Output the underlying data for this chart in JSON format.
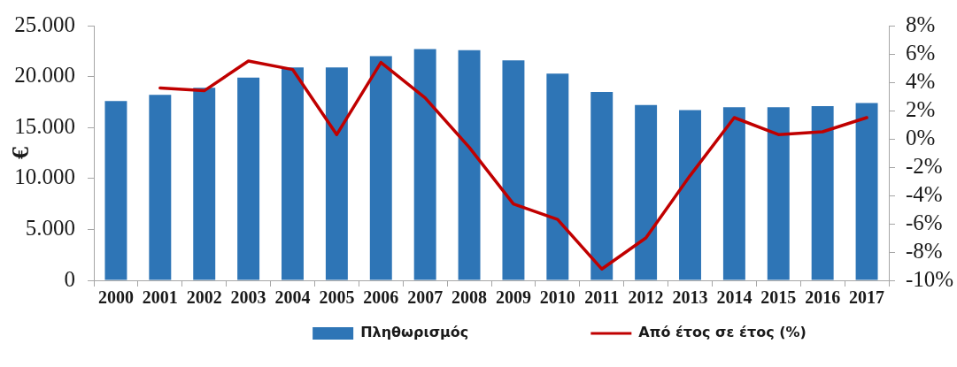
{
  "chart_data": {
    "type": "bar",
    "categories": [
      "2000",
      "2001",
      "2002",
      "2003",
      "2004",
      "2005",
      "2006",
      "2007",
      "2008",
      "2009",
      "2010",
      "2011",
      "2012",
      "2013",
      "2014",
      "2015",
      "2016",
      "2017"
    ],
    "ylabel": "€",
    "series": [
      {
        "name": "Πληθωρισμός",
        "color": "#2e75b6",
        "values": [
          17600,
          18200,
          18900,
          19900,
          20900,
          20900,
          22000,
          22700,
          22600,
          21600,
          20300,
          18500,
          17200,
          16700,
          17000,
          17000,
          17100,
          17400
        ]
      },
      {
        "name": "Από έτος σε έτος (%)",
        "type": "line",
        "axis": "y2",
        "color": "#c00000",
        "values": [
          null,
          3.6,
          3.4,
          5.5,
          4.9,
          0.3,
          5.4,
          2.9,
          -0.6,
          -4.6,
          -5.7,
          -9.2,
          -7.0,
          -2.6,
          1.5,
          0.3,
          0.5,
          1.5
        ]
      }
    ],
    "ylim": [
      0,
      25000
    ],
    "yticks": [
      0,
      {
        "value": 5000,
        "label": "5.000"
      },
      {
        "value": 10000,
        "label": "10.000"
      },
      {
        "value": 15000,
        "label": "15.000"
      },
      {
        "value": 20000,
        "label": "20.000"
      },
      {
        "value": 25000,
        "label": "25.000"
      }
    ],
    "y2lim": [
      -10,
      8
    ],
    "y2ticks": [
      {
        "value": -10,
        "label": "-10%"
      },
      {
        "value": -8,
        "label": "-8%"
      },
      {
        "value": -6,
        "label": "-6%"
      },
      {
        "value": -4,
        "label": "-4%"
      },
      {
        "value": -2,
        "label": "-2%"
      },
      {
        "value": 0,
        "label": "0%"
      },
      {
        "value": 2,
        "label": "2%"
      },
      {
        "value": 4,
        "label": "4%"
      },
      {
        "value": 6,
        "label": "6%"
      },
      {
        "value": 8,
        "label": "8%"
      }
    ],
    "legend": "bottom"
  }
}
